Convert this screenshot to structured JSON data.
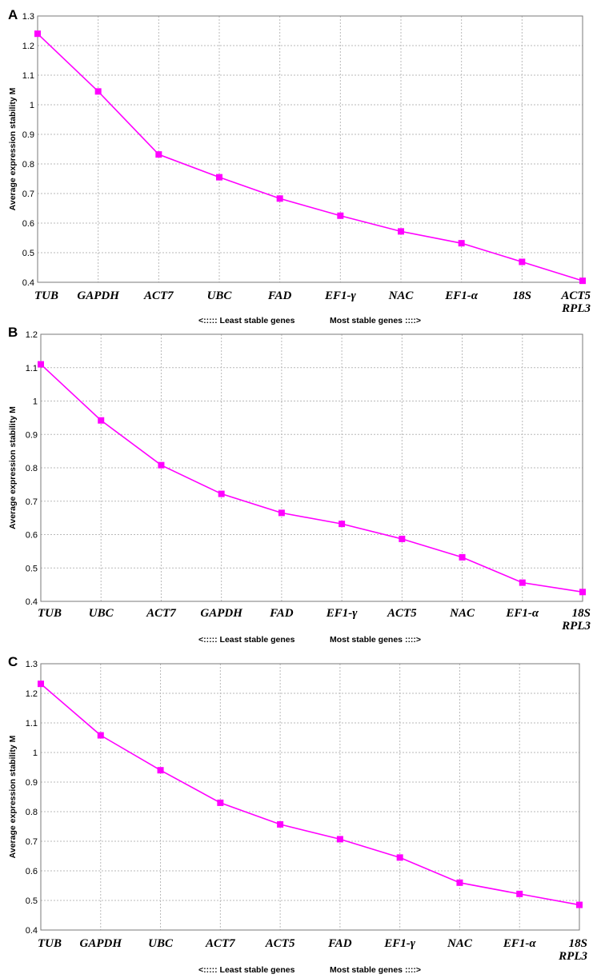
{
  "chart_data": [
    {
      "type": "line",
      "panel": "A",
      "ylabel": "Average expression stability M",
      "ylim": [
        0.4,
        1.3
      ],
      "yticks": [
        "0.4",
        "0.5",
        "0.6",
        "0.7",
        "0.8",
        "0.9",
        "1",
        "1.1",
        "1.2",
        "1.3"
      ],
      "categories": [
        "TUB",
        "GAPDH",
        "ACT7",
        "UBC",
        "FAD",
        "EF1-γ",
        "NAC",
        "EF1-α",
        "18S",
        "ACT5\nRPL3"
      ],
      "values": [
        1.24,
        1.045,
        0.832,
        0.755,
        0.683,
        0.625,
        0.572,
        0.532,
        0.469,
        0.405
      ],
      "caption_left": "<::::: Least stable genes",
      "caption_right": "Most stable genes ::::>",
      "marker_color": "#ff00ff",
      "line_color": "#ff00ff",
      "grid": true
    },
    {
      "type": "line",
      "panel": "B",
      "ylabel": "Average expression stability M",
      "ylim": [
        0.4,
        1.2
      ],
      "yticks": [
        "0.4",
        "0.5",
        "0.6",
        "0.7",
        "0.8",
        "0.9",
        "1",
        "1.1",
        "1.2"
      ],
      "categories": [
        "TUB",
        "UBC",
        "ACT7",
        "GAPDH",
        "FAD",
        "EF1-γ",
        "ACT5",
        "NAC",
        "EF1-α",
        "18S\nRPL3"
      ],
      "values": [
        1.11,
        0.942,
        0.808,
        0.722,
        0.665,
        0.632,
        0.587,
        0.532,
        0.456,
        0.428
      ],
      "caption_left": "<::::: Least stable genes",
      "caption_right": "Most stable genes ::::>",
      "marker_color": "#ff00ff",
      "line_color": "#ff00ff",
      "grid": true
    },
    {
      "type": "line",
      "panel": "C",
      "ylabel": "Average expression stability M",
      "ylim": [
        0.4,
        1.3
      ],
      "yticks": [
        "0.4",
        "0.5",
        "0.6",
        "0.7",
        "0.8",
        "0.9",
        "1",
        "1.1",
        "1.2",
        "1.3"
      ],
      "categories": [
        "TUB",
        "GAPDH",
        "UBC",
        "ACT7",
        "ACT5",
        "FAD",
        "EF1-γ",
        "NAC",
        "EF1-α",
        "18S\nRPL3"
      ],
      "values": [
        1.232,
        1.058,
        0.94,
        0.83,
        0.757,
        0.707,
        0.645,
        0.56,
        0.522,
        0.485
      ],
      "caption_left": "<::::: Least stable genes",
      "caption_right": "Most stable genes ::::>",
      "marker_color": "#ff00ff",
      "line_color": "#ff00ff",
      "grid": true
    }
  ]
}
